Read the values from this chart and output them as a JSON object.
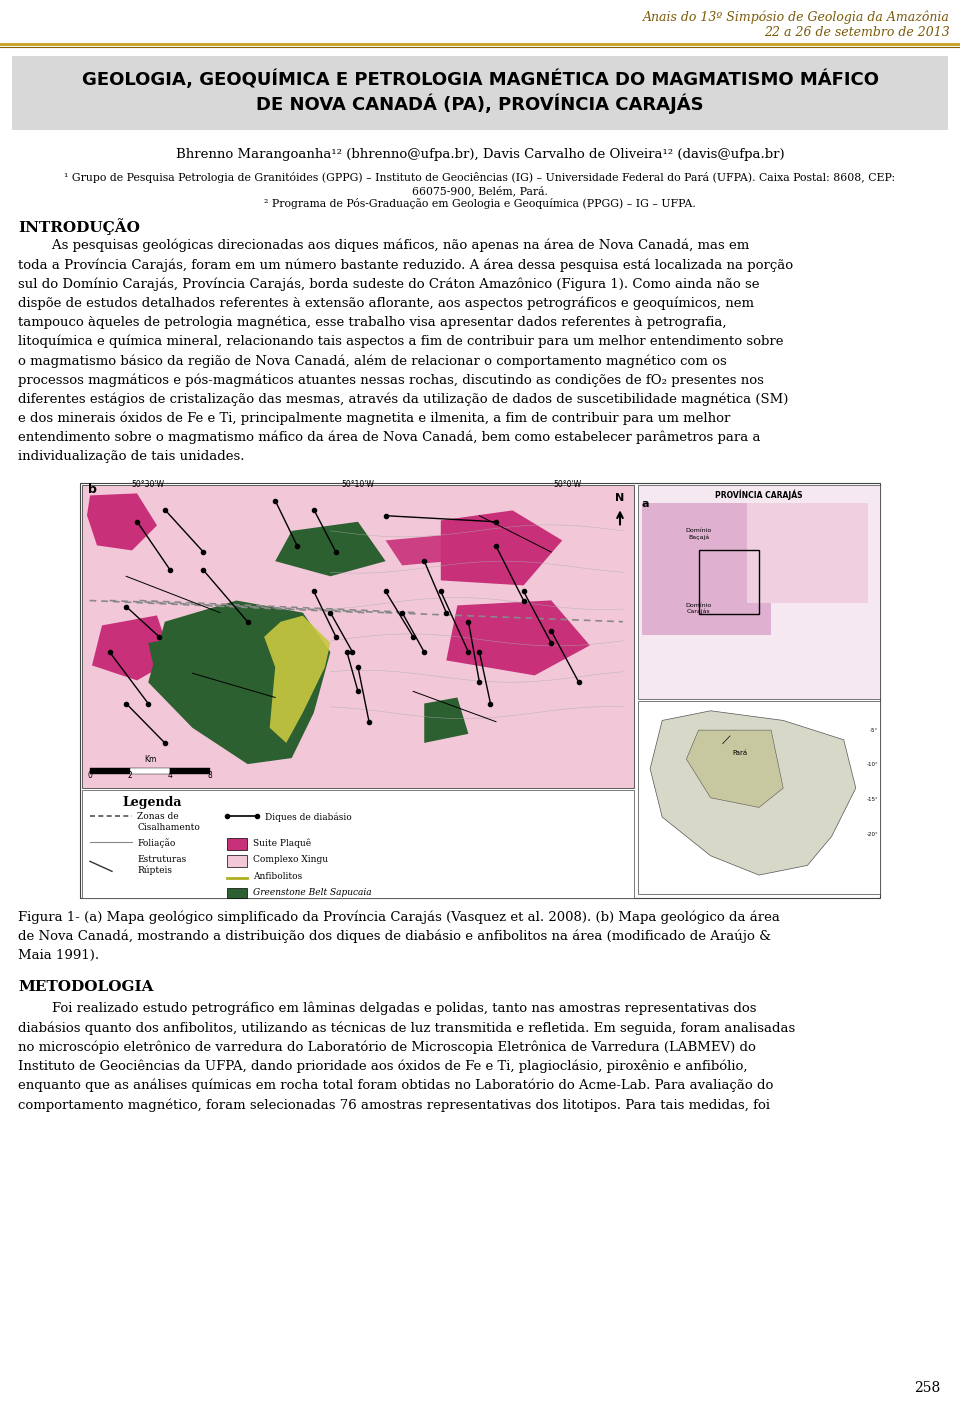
{
  "header_line1": "Anais do 13º Simpósio de Geologia da Amazônia",
  "header_line2": "22 a 26 de setembro de 2013",
  "header_color": "#7B5B0A",
  "title_line1": "GEOLOGIA, GEOQUÍMICA E PETROLOGIA MAGNÉTICA DO MAGMATISMO MÁFICO",
  "title_line2": "DE NOVA CANADÁ (PA), PROVÍNCIA CARAJÁS",
  "title_bg": "#D8D8D8",
  "authors": "Bhrenno Marangoanha¹² (bhrenno@ufpa.br), Davis Carvalho de Oliveira¹² (davis@ufpa.br)",
  "affil1_left": "¹ Grupo de Pesquisa Petrologia de Granitóides (GPPG) – Instituto de Geociências (IG) – Universidade Federal do Pará (UFPA). Caixa Postal: 8608, CEP:",
  "affil1_right": "66075-900, Belém, Pará.",
  "affil2": "² Programa de Pós-Graduação em Geologia e Geoquímica (PPGG) – IG – UFPA.",
  "section_intro": "INTRODUÇÃO",
  "section_metodo": "METODOLOGIA",
  "page_number": "258",
  "bg_color": "#FFFFFF",
  "header_bg": "#FFFFFF",
  "map_pink_light": "#F2C8D8",
  "map_pink_dark": "#C8307A",
  "map_green_dark": "#2D6030",
  "map_yellow_green": "#B8B830",
  "separator_color1": "#C8A020",
  "separator_color2": "#8B6300"
}
